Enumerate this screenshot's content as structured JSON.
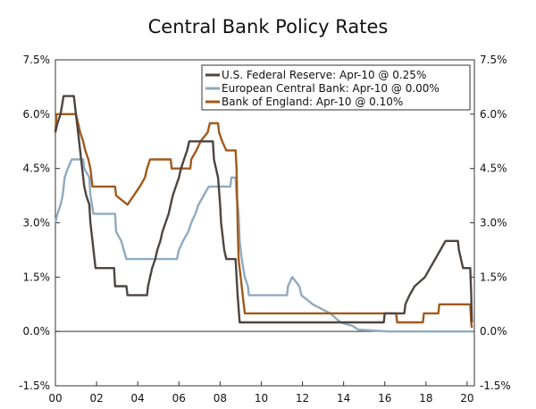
{
  "chart_data": {
    "type": "line",
    "title": "Central Bank Policy Rates",
    "xlabel": "",
    "ylabel": "",
    "x_ticks": [
      "00",
      "02",
      "04",
      "06",
      "08",
      "10",
      "12",
      "14",
      "16",
      "18",
      "20"
    ],
    "x_tick_years": [
      2000,
      2002,
      2004,
      2006,
      2008,
      2010,
      2012,
      2014,
      2016,
      2018,
      2020
    ],
    "xlim": [
      2000,
      2020.35
    ],
    "y_ticks": [
      "-1.5%",
      "0.0%",
      "1.5%",
      "3.0%",
      "4.5%",
      "6.0%",
      "7.5%"
    ],
    "y_tick_values": [
      -1.5,
      0,
      1.5,
      3.0,
      4.5,
      6.0,
      7.5
    ],
    "ylim": [
      -1.5,
      7.5
    ],
    "legend_position": "top-right",
    "series": [
      {
        "name": "U.S. Federal Reserve: Apr-10 @ 0.25%",
        "color": "#4d4540",
        "points": [
          [
            2000.0,
            5.5
          ],
          [
            2000.1,
            5.75
          ],
          [
            2000.25,
            6.0
          ],
          [
            2000.4,
            6.5
          ],
          [
            2000.9,
            6.5
          ],
          [
            2001.0,
            6.0
          ],
          [
            2001.1,
            5.5
          ],
          [
            2001.2,
            5.0
          ],
          [
            2001.3,
            4.5
          ],
          [
            2001.4,
            4.0
          ],
          [
            2001.5,
            3.75
          ],
          [
            2001.65,
            3.5
          ],
          [
            2001.7,
            3.0
          ],
          [
            2001.8,
            2.5
          ],
          [
            2001.9,
            2.0
          ],
          [
            2001.95,
            1.75
          ],
          [
            2002.85,
            1.75
          ],
          [
            2002.9,
            1.25
          ],
          [
            2003.45,
            1.25
          ],
          [
            2003.5,
            1.0
          ],
          [
            2004.45,
            1.0
          ],
          [
            2004.5,
            1.25
          ],
          [
            2004.6,
            1.5
          ],
          [
            2004.7,
            1.75
          ],
          [
            2004.85,
            2.0
          ],
          [
            2004.95,
            2.25
          ],
          [
            2005.1,
            2.5
          ],
          [
            2005.2,
            2.75
          ],
          [
            2005.35,
            3.0
          ],
          [
            2005.5,
            3.25
          ],
          [
            2005.6,
            3.5
          ],
          [
            2005.7,
            3.75
          ],
          [
            2005.85,
            4.0
          ],
          [
            2006.0,
            4.25
          ],
          [
            2006.1,
            4.5
          ],
          [
            2006.25,
            4.75
          ],
          [
            2006.4,
            5.0
          ],
          [
            2006.5,
            5.25
          ],
          [
            2007.65,
            5.25
          ],
          [
            2007.7,
            4.75
          ],
          [
            2007.8,
            4.5
          ],
          [
            2007.9,
            4.25
          ],
          [
            2008.0,
            3.5
          ],
          [
            2008.05,
            3.0
          ],
          [
            2008.2,
            2.25
          ],
          [
            2008.3,
            2.0
          ],
          [
            2008.75,
            2.0
          ],
          [
            2008.8,
            1.5
          ],
          [
            2008.85,
            1.0
          ],
          [
            2008.95,
            0.25
          ],
          [
            2015.95,
            0.25
          ],
          [
            2016.0,
            0.5
          ],
          [
            2016.95,
            0.5
          ],
          [
            2017.0,
            0.75
          ],
          [
            2017.2,
            1.0
          ],
          [
            2017.45,
            1.25
          ],
          [
            2017.95,
            1.5
          ],
          [
            2018.2,
            1.75
          ],
          [
            2018.45,
            2.0
          ],
          [
            2018.7,
            2.25
          ],
          [
            2018.95,
            2.5
          ],
          [
            2019.55,
            2.5
          ],
          [
            2019.6,
            2.25
          ],
          [
            2019.7,
            2.0
          ],
          [
            2019.8,
            1.75
          ],
          [
            2020.15,
            1.75
          ],
          [
            2020.2,
            1.0
          ],
          [
            2020.23,
            0.25
          ]
        ]
      },
      {
        "name": "European Central Bank: Apr-10 @ 0.00%",
        "color": "#8faac0",
        "points": [
          [
            2000.0,
            3.0
          ],
          [
            2000.1,
            3.25
          ],
          [
            2000.25,
            3.5
          ],
          [
            2000.35,
            3.75
          ],
          [
            2000.45,
            4.25
          ],
          [
            2000.6,
            4.5
          ],
          [
            2000.8,
            4.75
          ],
          [
            2001.35,
            4.75
          ],
          [
            2001.4,
            4.5
          ],
          [
            2001.65,
            4.25
          ],
          [
            2001.7,
            3.75
          ],
          [
            2001.85,
            3.25
          ],
          [
            2002.9,
            3.25
          ],
          [
            2002.95,
            2.75
          ],
          [
            2003.2,
            2.5
          ],
          [
            2003.45,
            2.0
          ],
          [
            2005.9,
            2.0
          ],
          [
            2006.0,
            2.25
          ],
          [
            2006.2,
            2.5
          ],
          [
            2006.45,
            2.75
          ],
          [
            2006.6,
            3.0
          ],
          [
            2006.8,
            3.25
          ],
          [
            2006.95,
            3.5
          ],
          [
            2007.2,
            3.75
          ],
          [
            2007.45,
            4.0
          ],
          [
            2008.5,
            4.0
          ],
          [
            2008.55,
            4.25
          ],
          [
            2008.75,
            4.25
          ],
          [
            2008.8,
            3.75
          ],
          [
            2008.9,
            3.25
          ],
          [
            2008.95,
            2.5
          ],
          [
            2009.05,
            2.0
          ],
          [
            2009.2,
            1.5
          ],
          [
            2009.35,
            1.25
          ],
          [
            2009.4,
            1.0
          ],
          [
            2011.25,
            1.0
          ],
          [
            2011.3,
            1.25
          ],
          [
            2011.5,
            1.5
          ],
          [
            2011.85,
            1.25
          ],
          [
            2011.95,
            1.0
          ],
          [
            2012.5,
            0.75
          ],
          [
            2013.35,
            0.5
          ],
          [
            2013.85,
            0.25
          ],
          [
            2014.45,
            0.15
          ],
          [
            2014.7,
            0.05
          ],
          [
            2016.2,
            0.0
          ],
          [
            2020.3,
            0.0
          ]
        ]
      },
      {
        "name": "Bank of England: Apr-10 @ 0.10%",
        "color": "#a05a1c",
        "points": [
          [
            2000.0,
            5.5
          ],
          [
            2000.05,
            6.0
          ],
          [
            2001.0,
            6.0
          ],
          [
            2001.1,
            5.75
          ],
          [
            2001.2,
            5.5
          ],
          [
            2001.35,
            5.25
          ],
          [
            2001.45,
            5.0
          ],
          [
            2001.6,
            4.75
          ],
          [
            2001.7,
            4.5
          ],
          [
            2001.8,
            4.0
          ],
          [
            2002.9,
            4.0
          ],
          [
            2002.95,
            3.75
          ],
          [
            2003.5,
            3.5
          ],
          [
            2003.8,
            3.75
          ],
          [
            2004.1,
            4.0
          ],
          [
            2004.35,
            4.25
          ],
          [
            2004.45,
            4.5
          ],
          [
            2004.6,
            4.75
          ],
          [
            2005.6,
            4.75
          ],
          [
            2005.65,
            4.5
          ],
          [
            2006.55,
            4.5
          ],
          [
            2006.6,
            4.75
          ],
          [
            2006.85,
            5.0
          ],
          [
            2007.05,
            5.25
          ],
          [
            2007.4,
            5.5
          ],
          [
            2007.5,
            5.75
          ],
          [
            2007.9,
            5.75
          ],
          [
            2007.95,
            5.5
          ],
          [
            2008.1,
            5.25
          ],
          [
            2008.3,
            5.0
          ],
          [
            2008.75,
            5.0
          ],
          [
            2008.8,
            4.5
          ],
          [
            2008.85,
            3.0
          ],
          [
            2008.9,
            2.0
          ],
          [
            2009.0,
            1.5
          ],
          [
            2009.1,
            1.0
          ],
          [
            2009.2,
            0.5
          ],
          [
            2016.55,
            0.5
          ],
          [
            2016.6,
            0.25
          ],
          [
            2017.85,
            0.25
          ],
          [
            2017.9,
            0.5
          ],
          [
            2018.6,
            0.5
          ],
          [
            2018.65,
            0.75
          ],
          [
            2020.15,
            0.75
          ],
          [
            2020.2,
            0.25
          ],
          [
            2020.23,
            0.1
          ]
        ]
      }
    ]
  }
}
